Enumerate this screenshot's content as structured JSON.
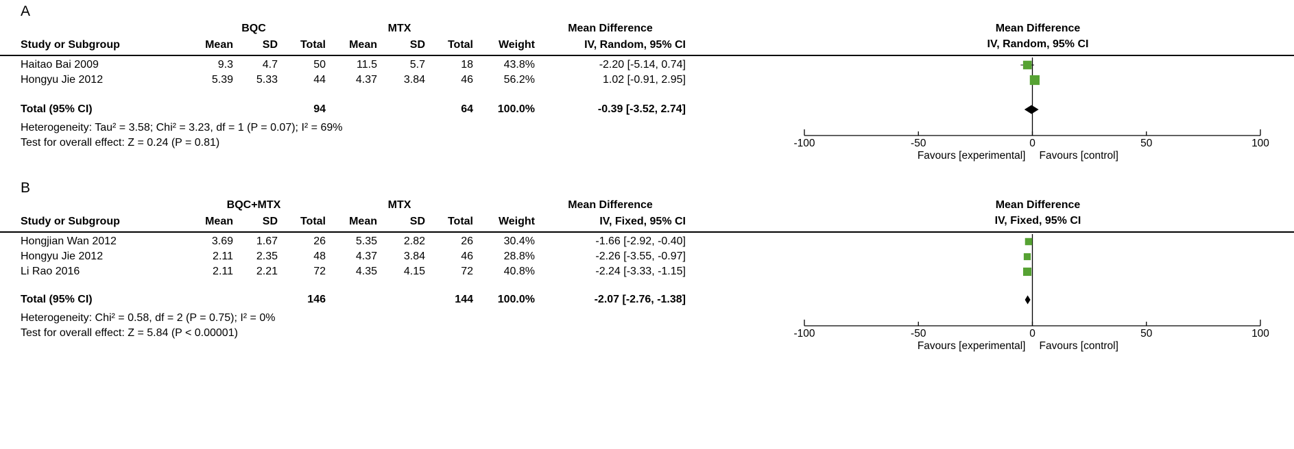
{
  "figure": {
    "colors": {
      "square": "#56a233",
      "diamond": "#000000",
      "line": "#000000"
    }
  },
  "chart_data": [
    {
      "type": "forest",
      "panel_label": "A",
      "group1": "BQC",
      "group2": "MTX",
      "headers": {
        "study": "Study or Subgroup",
        "mean": "Mean",
        "sd": "SD",
        "total": "Total",
        "weight": "Weight",
        "effect": "Mean Difference",
        "model": "IV, Random, 95% CI"
      },
      "studies": [
        {
          "name": "Haitao Bai 2009",
          "mean1": "9.3",
          "sd1": "4.7",
          "n1": "50",
          "mean2": "11.5",
          "sd2": "5.7",
          "n2": "18",
          "weight": "43.8%",
          "estimate": "-2.20 [-5.14, 0.74]",
          "md": -2.2,
          "ci_low": -5.14,
          "ci_high": 0.74,
          "weight_pct": 43.8
        },
        {
          "name": "Hongyu Jie 2012",
          "mean1": "5.39",
          "sd1": "5.33",
          "n1": "44",
          "mean2": "4.37",
          "sd2": "3.84",
          "n2": "46",
          "weight": "56.2%",
          "estimate": "1.02 [-0.91, 2.95]",
          "md": 1.02,
          "ci_low": -0.91,
          "ci_high": 2.95,
          "weight_pct": 56.2
        }
      ],
      "total": {
        "label": "Total (95% CI)",
        "n1": "94",
        "n2": "64",
        "weight": "100.0%",
        "estimate": "-0.39 [-3.52, 2.74]",
        "md": -0.39,
        "ci_low": -3.52,
        "ci_high": 2.74
      },
      "heterogeneity": "Heterogeneity: Tau² = 3.58; Chi² = 3.23, df = 1 (P = 0.07); I² = 69%",
      "overall_effect": "Test for overall effect: Z = 0.24 (P = 0.81)",
      "xlim": [
        -100,
        100
      ],
      "ticks": [
        "-100",
        "-50",
        "0",
        "50",
        "100"
      ],
      "favours": [
        "Favours [experimental]",
        "Favours [control]"
      ]
    },
    {
      "type": "forest",
      "panel_label": "B",
      "group1": "BQC+MTX",
      "group2": "MTX",
      "headers": {
        "study": "Study or Subgroup",
        "mean": "Mean",
        "sd": "SD",
        "total": "Total",
        "weight": "Weight",
        "effect": "Mean Difference",
        "model": "IV, Fixed, 95% CI"
      },
      "studies": [
        {
          "name": "Hongjian Wan 2012",
          "mean1": "3.69",
          "sd1": "1.67",
          "n1": "26",
          "mean2": "5.35",
          "sd2": "2.82",
          "n2": "26",
          "weight": "30.4%",
          "estimate": "-1.66 [-2.92, -0.40]",
          "md": -1.66,
          "ci_low": -2.92,
          "ci_high": -0.4,
          "weight_pct": 30.4
        },
        {
          "name": "Hongyu Jie 2012",
          "mean1": "2.11",
          "sd1": "2.35",
          "n1": "48",
          "mean2": "4.37",
          "sd2": "3.84",
          "n2": "46",
          "weight": "28.8%",
          "estimate": "-2.26 [-3.55, -0.97]",
          "md": -2.26,
          "ci_low": -3.55,
          "ci_high": -0.97,
          "weight_pct": 28.8
        },
        {
          "name": "Li Rao 2016",
          "mean1": "2.11",
          "sd1": "2.21",
          "n1": "72",
          "mean2": "4.35",
          "sd2": "4.15",
          "n2": "72",
          "weight": "40.8%",
          "estimate": "-2.24 [-3.33, -1.15]",
          "md": -2.24,
          "ci_low": -3.33,
          "ci_high": -1.15,
          "weight_pct": 40.8
        }
      ],
      "total": {
        "label": "Total (95% CI)",
        "n1": "146",
        "n2": "144",
        "weight": "100.0%",
        "estimate": "-2.07 [-2.76, -1.38]",
        "md": -2.07,
        "ci_low": -2.76,
        "ci_high": -1.38
      },
      "heterogeneity": "Heterogeneity: Chi² = 0.58, df = 2 (P = 0.75); I² = 0%",
      "overall_effect": "Test for overall effect: Z = 5.84 (P < 0.00001)",
      "xlim": [
        -100,
        100
      ],
      "ticks": [
        "-100",
        "-50",
        "0",
        "50",
        "100"
      ],
      "favours": [
        "Favours [experimental]",
        "Favours [control]"
      ]
    }
  ]
}
